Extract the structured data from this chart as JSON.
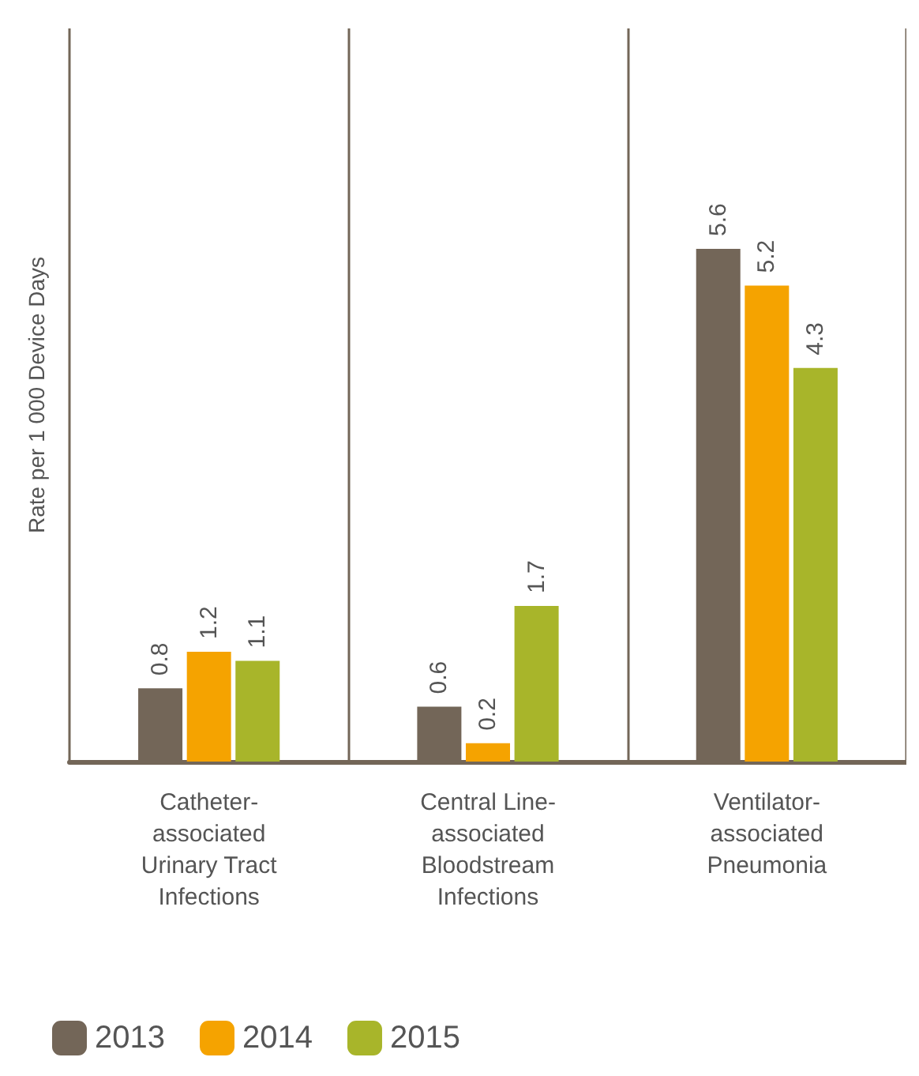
{
  "chart_data": {
    "type": "bar",
    "ylabel": "Rate per 1 000 Device Days",
    "categories": [
      "Catheter-\nassociated\nUrinary Tract\nInfections",
      "Central Line-\nassociated\nBloodstream\nInfections",
      "Ventilator-\nassociated\nPneumonia"
    ],
    "series": [
      {
        "name": "2013",
        "color": "#736658",
        "values": [
          0.8,
          0.6,
          5.6
        ]
      },
      {
        "name": "2014",
        "color": "#f5a300",
        "values": [
          1.2,
          0.2,
          5.2
        ]
      },
      {
        "name": "2015",
        "color": "#a8b52a",
        "values": [
          1.1,
          1.7,
          4.3
        ]
      }
    ],
    "data_labels": true,
    "grid": "x",
    "legend": "bottom left"
  }
}
